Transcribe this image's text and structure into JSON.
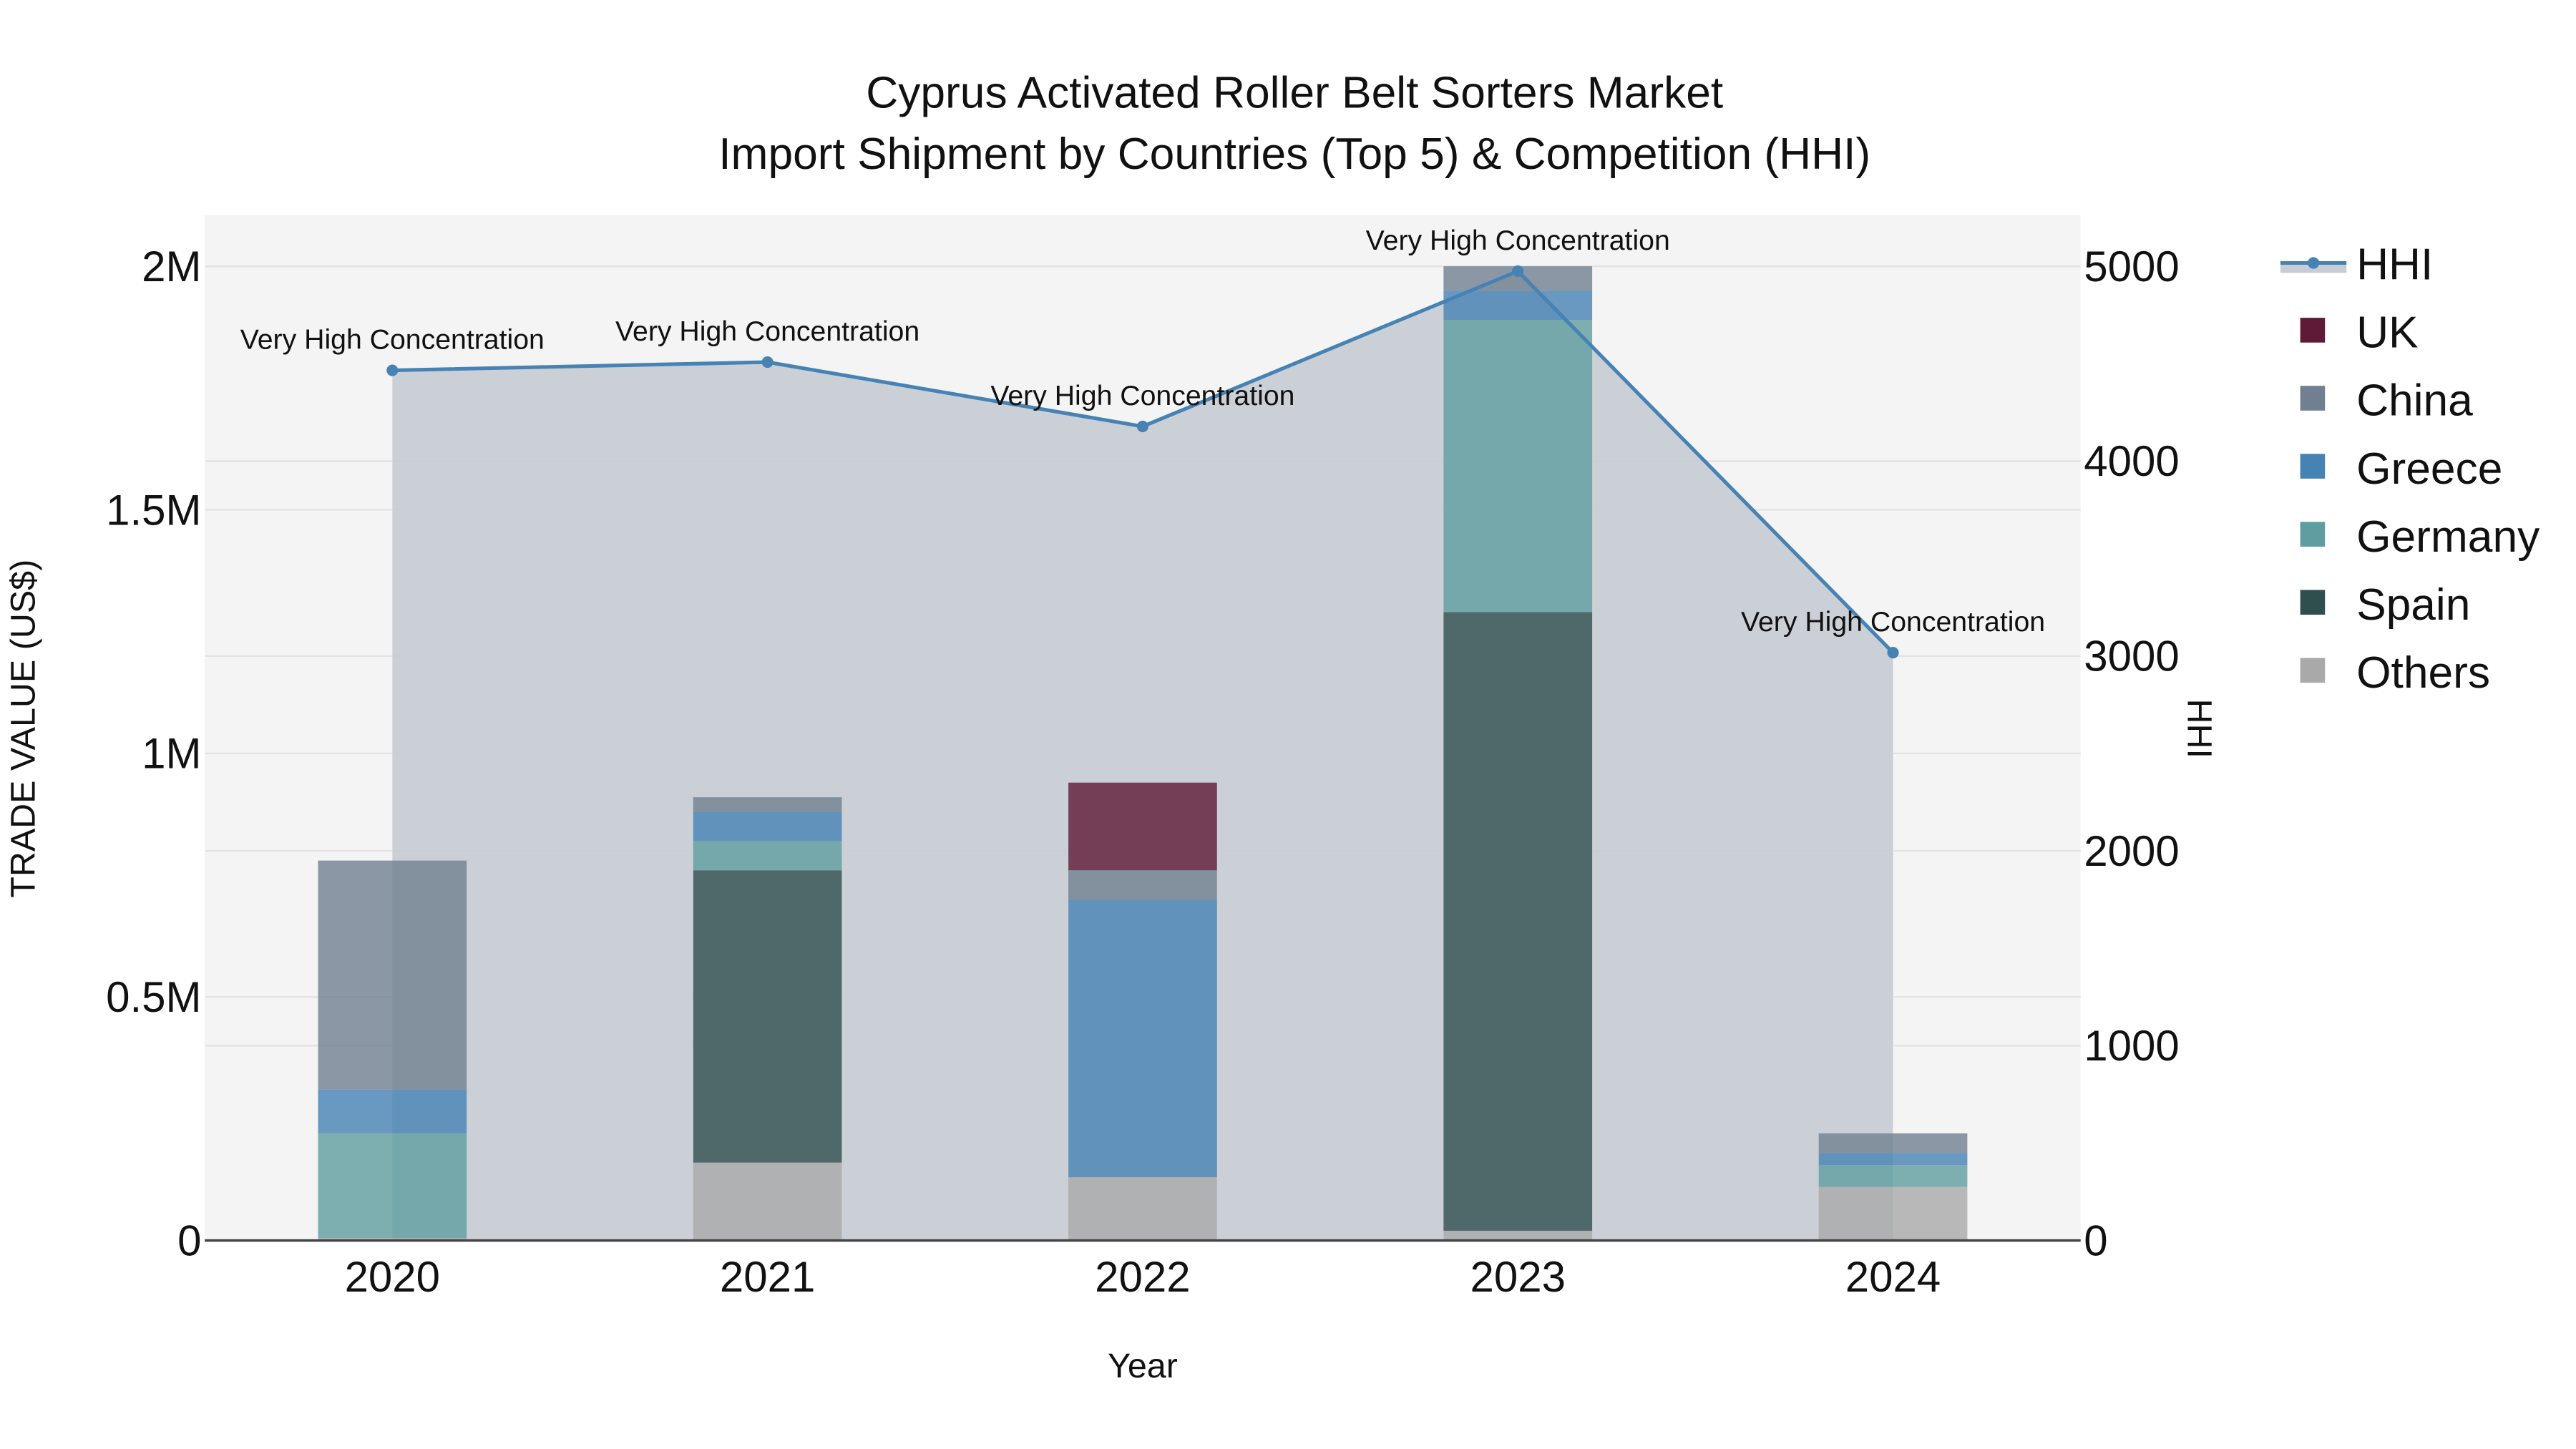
{
  "chart_data": {
    "type": "bar",
    "stacked": true,
    "title": "Cyprus Activated Roller Belt Sorters Market",
    "subtitle": "Import Shipment by Countries (Top 5) & Competition (HHI)",
    "xlabel": "Year",
    "ylabel": "TRADE VALUE (US$)",
    "y2label": "HHI",
    "categories": [
      "2020",
      "2021",
      "2022",
      "2023",
      "2024"
    ],
    "ylim": [
      0,
      2100000
    ],
    "y_ticks": [
      {
        "value": 0,
        "label": "0"
      },
      {
        "value": 500000,
        "label": "0.5M"
      },
      {
        "value": 1000000,
        "label": "1M"
      },
      {
        "value": 1500000,
        "label": "1.5M"
      },
      {
        "value": 2000000,
        "label": "2M"
      }
    ],
    "y2lim": [
      0,
      5250
    ],
    "y2_ticks": [
      {
        "value": 0,
        "label": "0"
      },
      {
        "value": 1000,
        "label": "1000"
      },
      {
        "value": 2000,
        "label": "2000"
      },
      {
        "value": 3000,
        "label": "3000"
      },
      {
        "value": 4000,
        "label": "4000"
      },
      {
        "value": 5000,
        "label": "5000"
      }
    ],
    "series": [
      {
        "name": "Others",
        "color": "#a9a9a9",
        "values": [
          5000,
          160000,
          130000,
          20000,
          110000
        ]
      },
      {
        "name": "Spain",
        "color": "#2f4f4f",
        "values": [
          0,
          600000,
          0,
          1270000,
          0
        ]
      },
      {
        "name": "Germany",
        "color": "#5f9ea0",
        "values": [
          215000,
          60000,
          0,
          600000,
          45000
        ]
      },
      {
        "name": "Greece",
        "color": "#4682b4",
        "values": [
          90000,
          60000,
          570000,
          60000,
          25000
        ]
      },
      {
        "name": "China",
        "color": "#708090",
        "values": [
          470000,
          30000,
          60000,
          50000,
          40000
        ]
      },
      {
        "name": "UK",
        "color": "#5e1a36",
        "values": [
          0,
          0,
          180000,
          0,
          0
        ]
      }
    ],
    "line_series": {
      "name": "HHI",
      "axis": "y2",
      "color": "#4682b4",
      "fill_color": "#c8cdd5",
      "values": [
        4466,
        4508,
        4178,
        4975,
        3017
      ],
      "annotations": [
        "Very High Concentration",
        "Very High Concentration",
        "Very High Concentration",
        "Very High Concentration",
        "Very High Concentration"
      ]
    },
    "legend": {
      "position": "right",
      "entries": [
        "HHI",
        "UK",
        "China",
        "Greece",
        "Germany",
        "Spain",
        "Others"
      ]
    },
    "grid": true,
    "plot_background": "#f4f4f4"
  }
}
